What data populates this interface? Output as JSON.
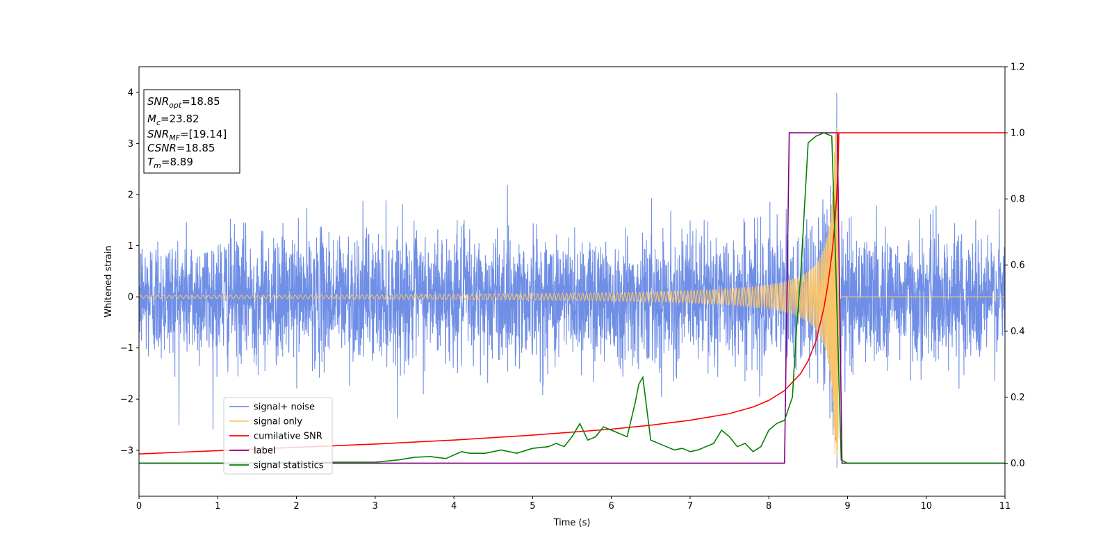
{
  "chart_data": {
    "type": "line",
    "title": "",
    "xlabel": "Time (s)",
    "ylabel": "Whitened strain",
    "xlim": [
      0,
      11
    ],
    "ylim_left": [
      -3.9,
      4.5
    ],
    "ylim_right": [
      -0.1,
      1.2
    ],
    "x_ticks": [
      "0",
      "1",
      "2",
      "3",
      "4",
      "5",
      "6",
      "7",
      "8",
      "9",
      "10",
      "11"
    ],
    "y_ticks_left": [
      "−3",
      "−2",
      "−1",
      "0",
      "1",
      "2",
      "3",
      "4"
    ],
    "y_ticks_right": [
      "0.0",
      "0.2",
      "0.4",
      "0.6",
      "0.8",
      "1.0",
      "1.2"
    ],
    "grid": false,
    "legend_position": "lower-left",
    "info_box": {
      "lines": [
        {
          "sym": "SNR",
          "sub": "opt",
          "value": "=18.85"
        },
        {
          "sym": "M",
          "sub": "c",
          "value": "=23.82"
        },
        {
          "sym": "SNR",
          "sub": "MF",
          "value": "=[19.14]"
        },
        {
          "sym": "CSNR",
          "sub": "",
          "value": "=18.85"
        },
        {
          "sym": "T",
          "sub": "m",
          "value": "=8.89"
        }
      ]
    },
    "series": [
      {
        "name": "signal+ noise",
        "color": "#6f8ee6",
        "axis": "left",
        "noise_std": 0.62,
        "x_range": [
          0,
          11
        ]
      },
      {
        "name": "signal only",
        "color": "#f9c46b",
        "axis": "left",
        "start_amp": 0.03,
        "peak_amp": 3.3,
        "merger_time": 8.89
      },
      {
        "name": "cumilative SNR",
        "color": "#ff0000",
        "axis": "right",
        "x": [
          0,
          1,
          2,
          3,
          4,
          5,
          6,
          6.5,
          7,
          7.5,
          7.8,
          8.0,
          8.2,
          8.4,
          8.5,
          8.6,
          8.7,
          8.75,
          8.8,
          8.83,
          8.86,
          8.88,
          8.89,
          9,
          11
        ],
        "y": [
          0.028,
          0.038,
          0.048,
          0.058,
          0.07,
          0.085,
          0.103,
          0.115,
          0.13,
          0.15,
          0.17,
          0.19,
          0.22,
          0.27,
          0.31,
          0.37,
          0.47,
          0.54,
          0.63,
          0.7,
          0.8,
          0.9,
          1.0,
          1.0,
          1.0
        ]
      },
      {
        "name": "label",
        "color": "#800080",
        "axis": "right",
        "x": [
          0,
          8.2,
          8.26,
          8.87,
          8.93,
          11
        ],
        "y": [
          0,
          0,
          1,
          1,
          0,
          0
        ]
      },
      {
        "name": "signal statistics",
        "color": "#008000",
        "axis": "right",
        "x": [
          0,
          1,
          2,
          2.5,
          3,
          3.3,
          3.5,
          3.7,
          3.9,
          4.0,
          4.1,
          4.2,
          4.4,
          4.6,
          4.8,
          5.0,
          5.2,
          5.3,
          5.4,
          5.5,
          5.6,
          5.7,
          5.8,
          5.9,
          6.0,
          6.1,
          6.2,
          6.3,
          6.35,
          6.4,
          6.5,
          6.6,
          6.7,
          6.8,
          6.9,
          7.0,
          7.1,
          7.2,
          7.3,
          7.4,
          7.5,
          7.6,
          7.7,
          7.8,
          7.9,
          8.0,
          8.1,
          8.2,
          8.3,
          8.35,
          8.4,
          8.5,
          8.6,
          8.7,
          8.8,
          8.85,
          8.92,
          9.0,
          10,
          11
        ],
        "y": [
          0,
          0,
          0.002,
          0.003,
          0.003,
          0.01,
          0.018,
          0.02,
          0.014,
          0.025,
          0.035,
          0.03,
          0.03,
          0.04,
          0.03,
          0.045,
          0.05,
          0.06,
          0.05,
          0.08,
          0.12,
          0.07,
          0.08,
          0.11,
          0.1,
          0.09,
          0.08,
          0.18,
          0.24,
          0.26,
          0.07,
          0.06,
          0.05,
          0.04,
          0.045,
          0.035,
          0.04,
          0.05,
          0.06,
          0.1,
          0.08,
          0.05,
          0.06,
          0.035,
          0.05,
          0.1,
          0.12,
          0.13,
          0.2,
          0.4,
          0.55,
          0.97,
          0.99,
          1.0,
          0.99,
          0.6,
          0.01,
          0.0,
          0.0,
          0.0
        ]
      }
    ]
  }
}
